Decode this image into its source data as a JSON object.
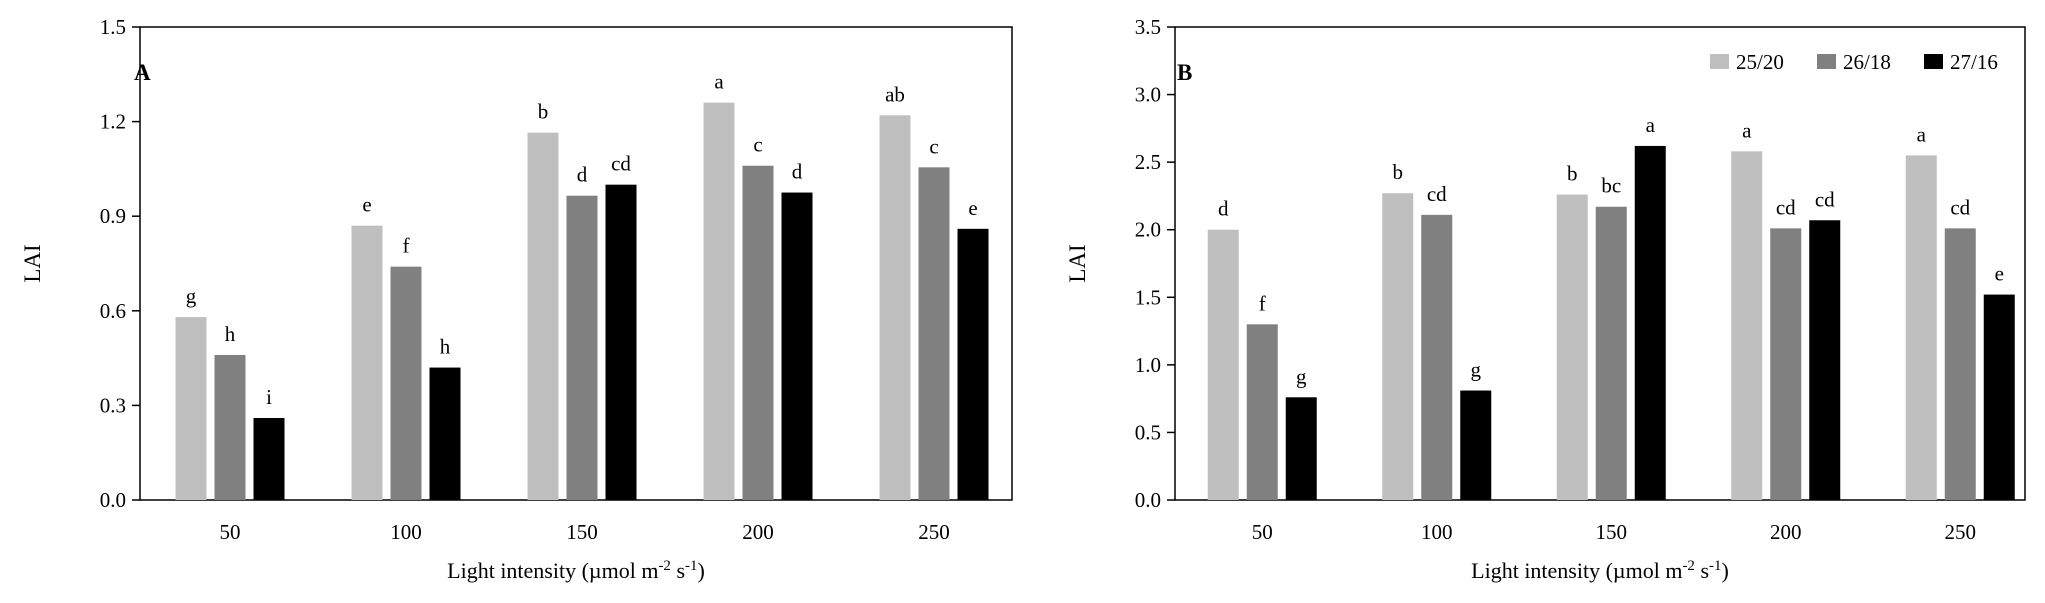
{
  "colors": {
    "s1": "#bfbfbf",
    "s2": "#808080",
    "s3": "#000000"
  },
  "chart_data": [
    {
      "type": "bar",
      "panel_label": "A",
      "categories": [
        "50",
        "100",
        "150",
        "200",
        "250"
      ],
      "xlabel": "Light intensity (µmol m",
      "xlabel_sup1": "-2",
      "xlabel_mid": " s",
      "xlabel_sup2": "-1",
      "xlabel_end": ")",
      "ylabel": "LAI",
      "ylim": [
        0,
        1.5
      ],
      "yticks": [
        "0.0",
        "0.3",
        "0.6",
        "0.9",
        "1.2",
        "1.5"
      ],
      "legend": "none",
      "series": [
        {
          "values": [
            0.58,
            0.87,
            1.165,
            1.26,
            1.22
          ],
          "labels": [
            "g",
            "e",
            "b",
            "a",
            "ab"
          ]
        },
        {
          "values": [
            0.46,
            0.74,
            0.965,
            1.06,
            1.055
          ],
          "labels": [
            "h",
            "f",
            "d",
            "c",
            "c"
          ]
        },
        {
          "values": [
            0.26,
            0.42,
            1.0,
            0.975,
            0.86
          ],
          "labels": [
            "i",
            "h",
            "cd",
            "d",
            "e"
          ]
        }
      ]
    },
    {
      "type": "bar",
      "panel_label": "B",
      "categories": [
        "50",
        "100",
        "150",
        "200",
        "250"
      ],
      "xlabel": "Light intensity (µmol m",
      "xlabel_sup1": "-2",
      "xlabel_mid": " s",
      "xlabel_sup2": "-1",
      "xlabel_end": ")",
      "ylabel": "LAI",
      "ylim": [
        0,
        3.5
      ],
      "yticks": [
        "0.0",
        "0.5",
        "1.0",
        "1.5",
        "2.0",
        "2.5",
        "3.0",
        "3.5"
      ],
      "legend": "top-right",
      "series": [
        {
          "name": "25/20",
          "values": [
            2.0,
            2.27,
            2.26,
            2.58,
            2.55
          ],
          "labels": [
            "d",
            "b",
            "b",
            "a",
            "a"
          ]
        },
        {
          "name": "26/18",
          "values": [
            1.3,
            2.11,
            2.17,
            2.01,
            2.01
          ],
          "labels": [
            "f",
            "cd",
            "bc",
            "cd",
            "cd"
          ]
        },
        {
          "name": "27/16",
          "values": [
            0.76,
            0.81,
            2.62,
            2.07,
            1.52
          ],
          "labels": [
            "g",
            "g",
            "a",
            "cd",
            "e"
          ]
        }
      ]
    }
  ]
}
